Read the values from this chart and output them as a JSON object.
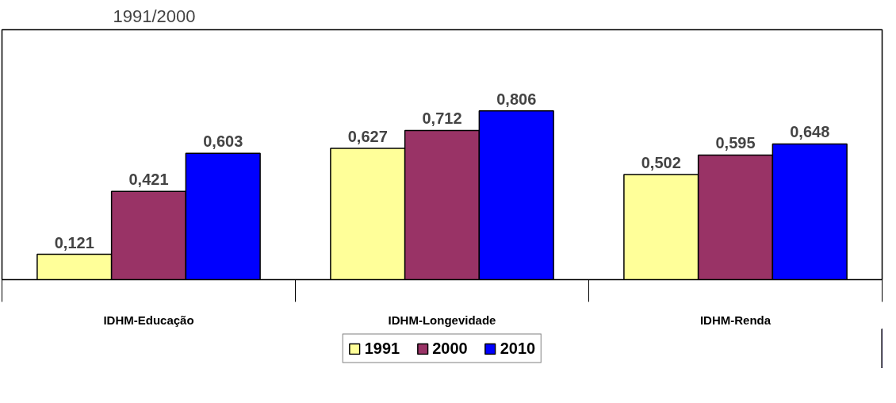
{
  "chart_data": {
    "type": "bar",
    "title": "1991/2000",
    "categories": [
      "IDHM-Educação",
      "IDHM-Longevidade",
      "IDHM-Renda"
    ],
    "series": [
      {
        "name": "1991",
        "color": "#ffff99",
        "values": [
          0.121,
          0.627,
          0.502
        ],
        "value_labels": [
          "0,121",
          "0,627",
          "0,502"
        ]
      },
      {
        "name": "2000",
        "color": "#993366",
        "values": [
          0.421,
          0.712,
          0.595
        ],
        "value_labels": [
          "0,421",
          "0,712",
          "0,595"
        ]
      },
      {
        "name": "2010",
        "color": "#0000ff",
        "values": [
          0.603,
          0.806,
          0.648
        ],
        "value_labels": [
          "0,603",
          "0,806",
          "0,648"
        ]
      }
    ],
    "tick_labels": "x",
    "legend": "bottom"
  }
}
